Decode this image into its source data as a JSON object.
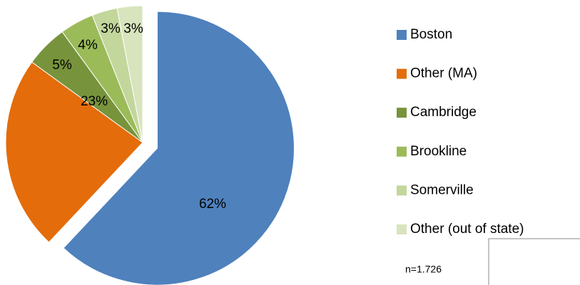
{
  "chart_data": {
    "type": "pie",
    "categories": [
      "Boston",
      "Other (MA)",
      "Cambridge",
      "Brookline",
      "Somerville",
      "Other (out of state)"
    ],
    "values": [
      62,
      23,
      5,
      4,
      3,
      3
    ],
    "value_labels": [
      "62%",
      "23%",
      "5%",
      "4%",
      "3%",
      "3%"
    ],
    "colors": [
      "#4f81bd",
      "#e46c0a",
      "#77933c",
      "#9bbb59",
      "#c3d69b",
      "#d7e4bd"
    ],
    "exploded": [
      true,
      false,
      false,
      false,
      false,
      false
    ],
    "legend": "right",
    "annotation": "n=1.726"
  }
}
